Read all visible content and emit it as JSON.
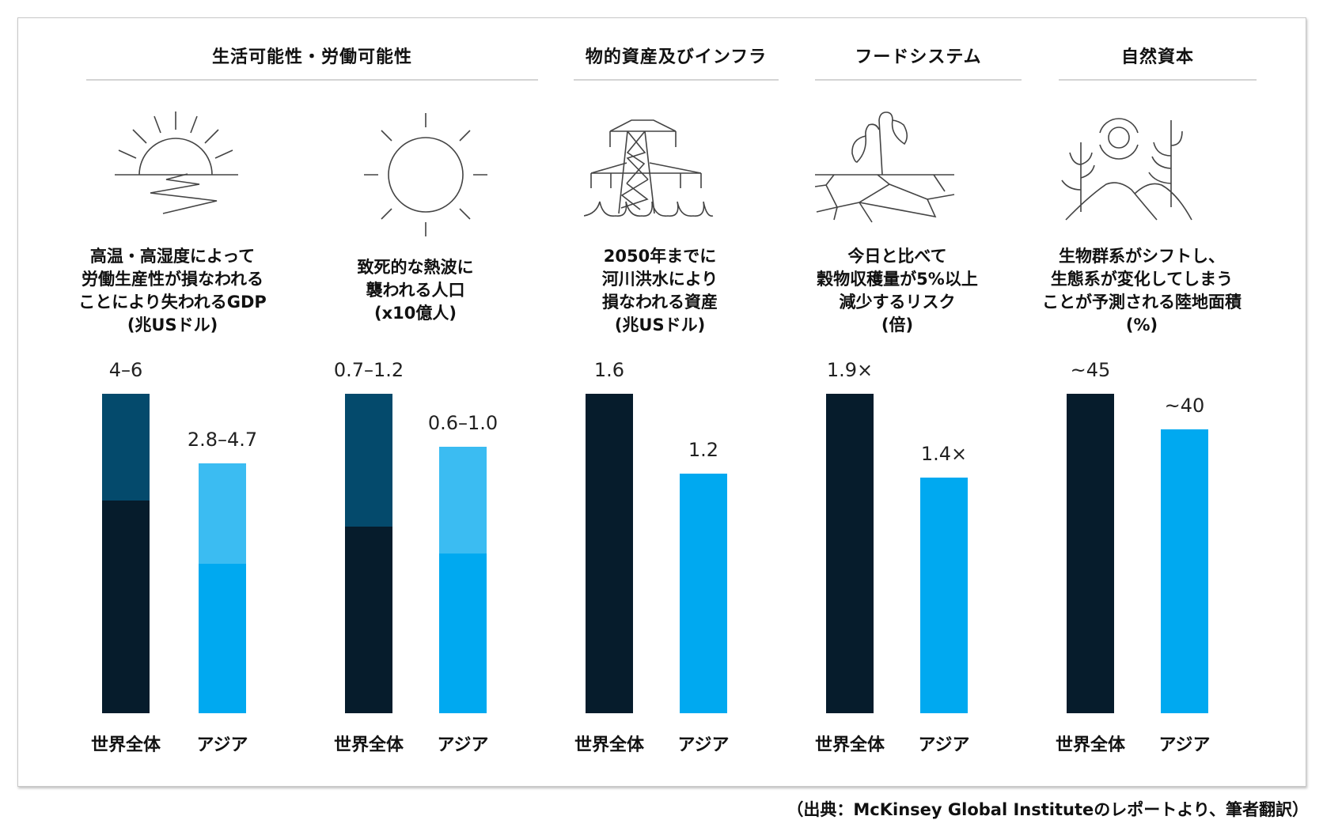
{
  "colors": {
    "world_base": "#061c2c",
    "world_range": "#044a6c",
    "asia_base": "#00a9f0",
    "asia_range": "#3bbcf2"
  },
  "groups": [
    {
      "title": "生活可能性・労働可能性"
    },
    {
      "title": "物的資産及びインフラ"
    },
    {
      "title": "フードシステム"
    },
    {
      "title": "自然資本"
    }
  ],
  "icons": [
    "sunset-icon",
    "sun-icon",
    "power-tower-flood-icon",
    "sprout-cracked-soil-icon",
    "nature-landscape-icon"
  ],
  "chart_data": [
    {
      "type": "bar",
      "group": "生活可能性・労働可能性",
      "title": "高温・高湿度によって\n労働生産性が損なわれる\nことにより失われるGDP\n(兆USドル)",
      "categories": [
        "世界全体",
        "アジア"
      ],
      "series": [
        {
          "name": "世界全体",
          "range": [
            4,
            6
          ],
          "label": "4–6"
        },
        {
          "name": "アジア",
          "range": [
            2.8,
            4.7
          ],
          "label": "2.8–4.7"
        }
      ],
      "ylim": [
        0,
        6
      ]
    },
    {
      "type": "bar",
      "group": "生活可能性・労働可能性",
      "title": "致死的な熱波に\n襲われる人口\n(x10億人)",
      "categories": [
        "世界全体",
        "アジア"
      ],
      "series": [
        {
          "name": "世界全体",
          "range": [
            0.7,
            1.2
          ],
          "label": "0.7–1.2"
        },
        {
          "name": "アジア",
          "range": [
            0.6,
            1.0
          ],
          "label": "0.6–1.0"
        }
      ],
      "ylim": [
        0,
        1.2
      ]
    },
    {
      "type": "bar",
      "group": "物的資産及びインフラ",
      "title": "2050年までに\n河川洪水により\n損なわれる資産\n(兆USドル)",
      "categories": [
        "世界全体",
        "アジア"
      ],
      "series": [
        {
          "name": "世界全体",
          "value": 1.6,
          "label": "1.6"
        },
        {
          "name": "アジア",
          "value": 1.2,
          "label": "1.2"
        }
      ],
      "ylim": [
        0,
        1.6
      ]
    },
    {
      "type": "bar",
      "group": "フードシステム",
      "title": "今日と比べて\n穀物収穫量が5%以上\n減少するリスク\n(倍)",
      "categories": [
        "世界全体",
        "アジア"
      ],
      "series": [
        {
          "name": "世界全体",
          "value": 1.9,
          "label": "1.9×"
        },
        {
          "name": "アジア",
          "value": 1.4,
          "label": "1.4×"
        }
      ],
      "ylim": [
        0,
        1.9
      ]
    },
    {
      "type": "bar",
      "group": "自然資本",
      "title": "生物群系がシフトし、\n生態系が変化してしまう\nことが予測される陸地面積\n(%)",
      "categories": [
        "世界全体",
        "アジア"
      ],
      "series": [
        {
          "name": "世界全体",
          "value": 45,
          "label": "~45"
        },
        {
          "name": "アジア",
          "value": 40,
          "label": "~40"
        }
      ],
      "ylim": [
        0,
        45
      ]
    }
  ],
  "source": "（出典：McKinsey Global Instituteのレポートより、筆者翻訳）"
}
